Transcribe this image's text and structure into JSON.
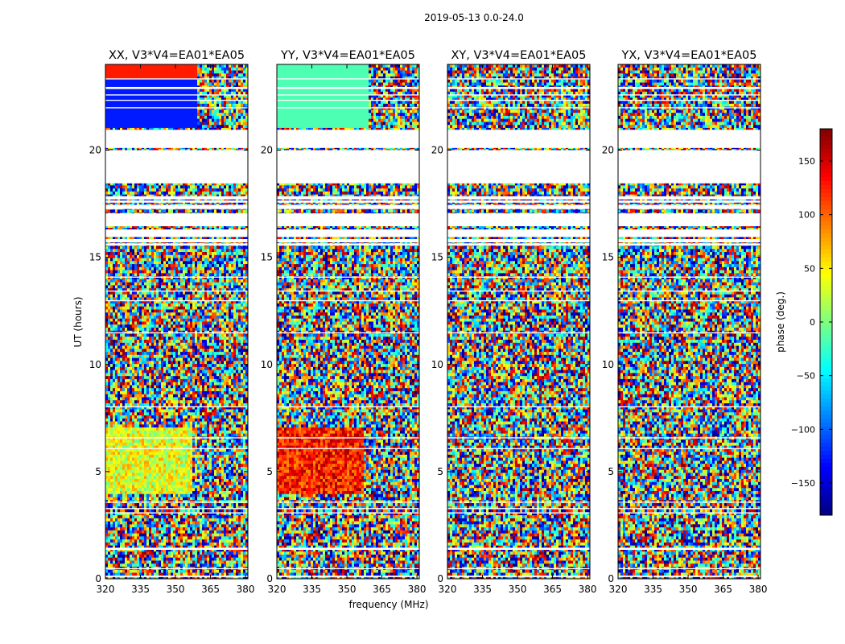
{
  "figure": {
    "suptitle": "2019-05-13 0.0-24.0",
    "xlabel": "frequency (MHz)",
    "ylabel": "UT (hours)"
  },
  "chart_data": {
    "type": "heatmap",
    "x_range": [
      320,
      381
    ],
    "y_range": [
      0,
      24
    ],
    "x_ticks": [
      320,
      335,
      350,
      365,
      380
    ],
    "y_ticks": [
      0,
      5,
      10,
      15,
      20
    ],
    "panels": [
      {
        "title": "XX, V3*V4=EA01*EA05"
      },
      {
        "title": "YY, V3*V4=EA01*EA05"
      },
      {
        "title": "XY, V3*V4=EA01*EA05"
      },
      {
        "title": "YX, V3*V4=EA01*EA05"
      }
    ],
    "flagged_ut_ranges": [
      [
        0.08,
        0.15
      ],
      [
        0.45,
        0.5
      ],
      [
        1.35,
        1.45
      ],
      [
        3.05,
        3.1
      ],
      [
        3.25,
        3.3
      ],
      [
        3.55,
        3.6
      ],
      [
        6.05,
        6.1
      ],
      [
        6.55,
        6.6
      ],
      [
        8.0,
        8.05
      ],
      [
        11.45,
        11.5
      ],
      [
        12.95,
        13.0
      ],
      [
        13.4,
        13.45
      ],
      [
        14.05,
        14.1
      ],
      [
        15.55,
        15.65
      ],
      [
        15.7,
        15.85
      ],
      [
        15.95,
        16.3
      ],
      [
        16.45,
        17.05
      ],
      [
        17.25,
        17.45
      ],
      [
        17.55,
        17.65
      ],
      [
        17.7,
        17.85
      ],
      [
        18.45,
        20.0
      ],
      [
        20.1,
        20.95
      ],
      [
        21.95,
        22.0
      ],
      [
        22.3,
        22.35
      ],
      [
        22.55,
        22.6
      ],
      [
        22.85,
        22.95
      ],
      [
        23.3,
        23.35
      ]
    ],
    "colorbar": {
      "label": "phase (deg.)",
      "range": [
        -180,
        180
      ],
      "ticks": [
        -150,
        -100,
        -50,
        0,
        50,
        100,
        150
      ],
      "tick_labels": [
        "−150",
        "−100",
        "−50",
        "0",
        "50",
        "100",
        "150"
      ],
      "colormap": "jet"
    }
  }
}
